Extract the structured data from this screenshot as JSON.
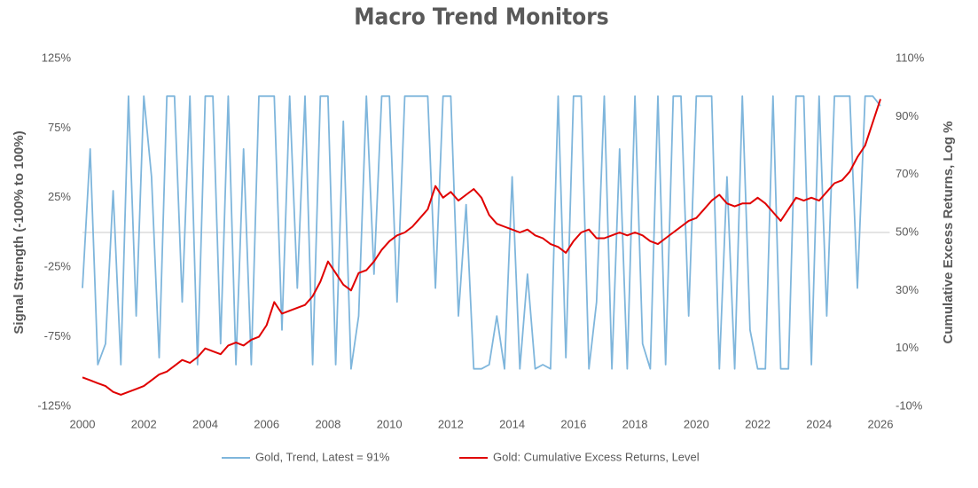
{
  "chart_data": {
    "type": "line",
    "title": "Macro Trend Monitors",
    "y_label": "Signal Strength (-100% to 100%)",
    "y2_label": "Cumulative Excess Returns, Log %",
    "xlim": [
      2000,
      2026.3
    ],
    "xticks": [
      2000,
      2002,
      2004,
      2006,
      2008,
      2010,
      2012,
      2014,
      2016,
      2018,
      2020,
      2022,
      2024,
      2026
    ],
    "ylim": [
      -125,
      125
    ],
    "yticks": [
      {
        "value": -125,
        "label": "-125%"
      },
      {
        "value": -75,
        "label": "-75%"
      },
      {
        "value": -25,
        "label": "-25%"
      },
      {
        "value": 25,
        "label": "25%"
      },
      {
        "value": 75,
        "label": "75%"
      },
      {
        "value": 125,
        "label": "125%"
      }
    ],
    "y2lim": [
      -10,
      110
    ],
    "y2ticks": [
      {
        "value": -10,
        "label": "-10%"
      },
      {
        "value": 10,
        "label": "10%"
      },
      {
        "value": 30,
        "label": "30%"
      },
      {
        "value": 50,
        "label": "50%"
      },
      {
        "value": 70,
        "label": "70%"
      },
      {
        "value": 90,
        "label": "90%"
      },
      {
        "value": 110,
        "label": "110%"
      }
    ],
    "grid": false,
    "legend": "bottom",
    "x": [
      2000,
      2000.25,
      2000.5,
      2000.75,
      2001,
      2001.25,
      2001.5,
      2001.75,
      2002,
      2002.25,
      2002.5,
      2002.75,
      2003,
      2003.25,
      2003.5,
      2003.75,
      2004,
      2004.25,
      2004.5,
      2004.75,
      2005,
      2005.25,
      2005.5,
      2005.75,
      2006,
      2006.25,
      2006.5,
      2006.75,
      2007,
      2007.25,
      2007.5,
      2007.75,
      2008,
      2008.25,
      2008.5,
      2008.75,
      2009,
      2009.25,
      2009.5,
      2009.75,
      2010,
      2010.25,
      2010.5,
      2010.75,
      2011,
      2011.25,
      2011.5,
      2011.75,
      2012,
      2012.25,
      2012.5,
      2012.75,
      2013,
      2013.25,
      2013.5,
      2013.75,
      2014,
      2014.25,
      2014.5,
      2014.75,
      2015,
      2015.25,
      2015.5,
      2015.75,
      2016,
      2016.25,
      2016.5,
      2016.75,
      2017,
      2017.25,
      2017.5,
      2017.75,
      2018,
      2018.25,
      2018.5,
      2018.75,
      2019,
      2019.25,
      2019.5,
      2019.75,
      2020,
      2020.25,
      2020.5,
      2020.75,
      2021,
      2021.25,
      2021.5,
      2021.75,
      2022,
      2022.25,
      2022.5,
      2022.75,
      2023,
      2023.25,
      2023.5,
      2023.75,
      2024,
      2024.25,
      2024.5,
      2024.75,
      2025,
      2025.25,
      2025.5,
      2025.75,
      2026
    ],
    "series": [
      {
        "name": "Gold, Trend, Latest = 91%",
        "color": "#7fb6dc",
        "axis": "y",
        "values": [
          -40,
          60,
          -95,
          -80,
          30,
          -95,
          98,
          -60,
          98,
          40,
          -90,
          98,
          98,
          -50,
          98,
          -95,
          98,
          98,
          -80,
          98,
          -95,
          60,
          -95,
          98,
          98,
          98,
          -70,
          98,
          -40,
          98,
          -95,
          98,
          98,
          -95,
          80,
          -98,
          -60,
          98,
          -30,
          98,
          98,
          -50,
          98,
          98,
          98,
          98,
          -40,
          98,
          98,
          -60,
          20,
          -98,
          -98,
          -95,
          -60,
          -98,
          40,
          -98,
          -30,
          -98,
          -95,
          -98,
          98,
          -90,
          98,
          98,
          -98,
          -50,
          98,
          -98,
          60,
          -98,
          98,
          -80,
          -98,
          98,
          -95,
          98,
          98,
          -60,
          98,
          98,
          98,
          -98,
          40,
          -98,
          98,
          -70,
          -98,
          -98,
          98,
          -98,
          -98,
          98,
          98,
          -95,
          98,
          -60,
          98,
          98,
          98,
          -40,
          98,
          98,
          91
        ]
      },
      {
        "name": "Gold: Cumulative Excess Returns, Level",
        "color": "#e00000",
        "axis": "y2",
        "values": [
          0,
          -1,
          -2,
          -3,
          -5,
          -6,
          -5,
          -4,
          -3,
          -1,
          1,
          2,
          4,
          6,
          5,
          7,
          10,
          9,
          8,
          11,
          12,
          11,
          13,
          14,
          18,
          26,
          22,
          23,
          24,
          25,
          28,
          33,
          40,
          36,
          32,
          30,
          36,
          37,
          40,
          44,
          47,
          49,
          50,
          52,
          55,
          58,
          66,
          62,
          64,
          61,
          63,
          65,
          62,
          56,
          53,
          52,
          51,
          50,
          51,
          49,
          48,
          46,
          45,
          43,
          47,
          50,
          51,
          48,
          48,
          49,
          50,
          49,
          50,
          49,
          47,
          46,
          48,
          50,
          52,
          54,
          55,
          58,
          61,
          63,
          60,
          59,
          60,
          60,
          62,
          60,
          57,
          54,
          58,
          62,
          61,
          62,
          61,
          64,
          67,
          68,
          71,
          76,
          80,
          88,
          96
        ]
      }
    ]
  }
}
